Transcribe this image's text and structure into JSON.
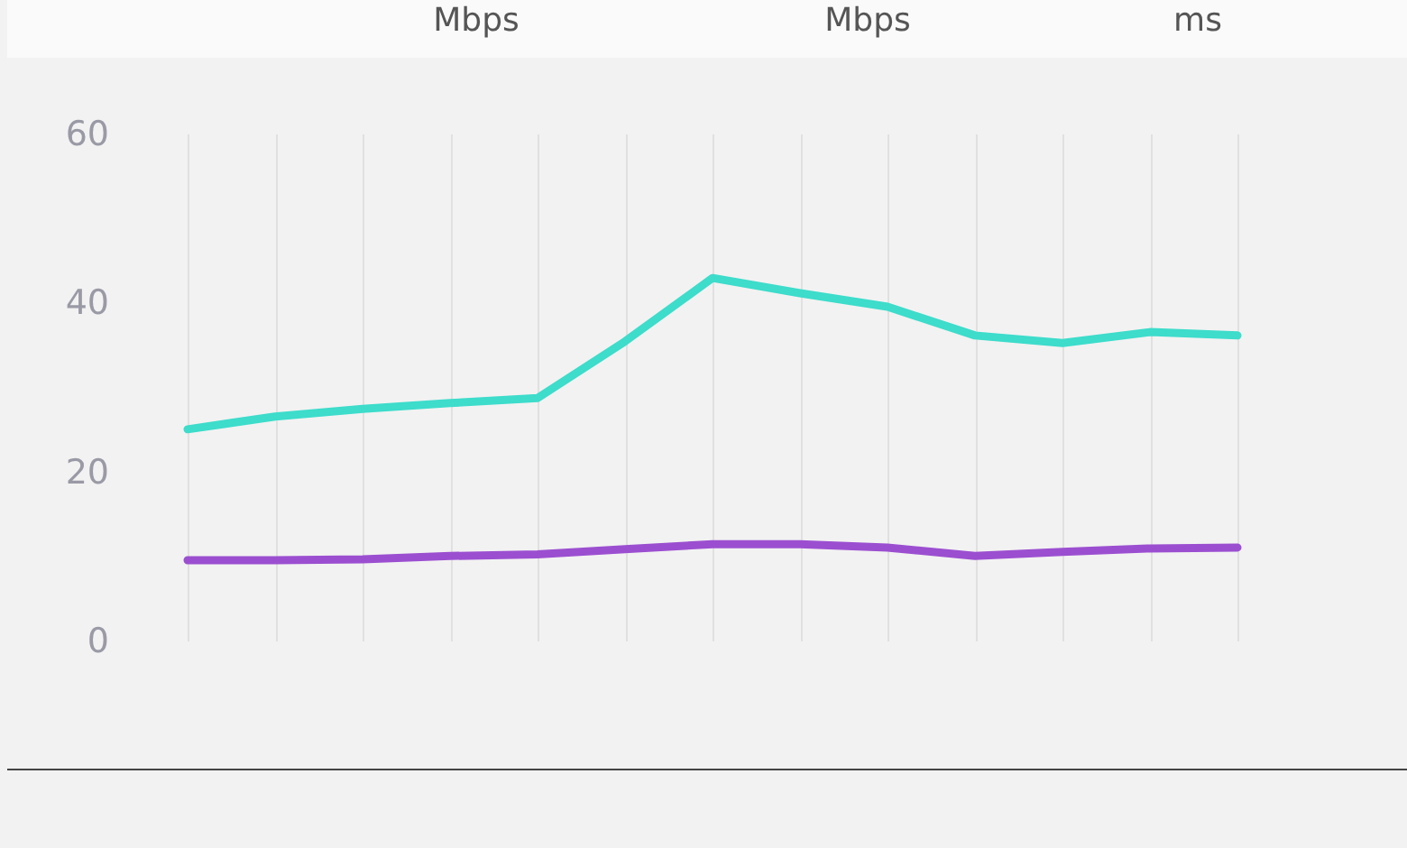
{
  "chart_data": {
    "type": "line",
    "annotations": [
      "Mbps",
      "Mbps",
      "ms"
    ],
    "categories": [
      null,
      null,
      null,
      null,
      null,
      null,
      null,
      null,
      null,
      null,
      null,
      null,
      null
    ],
    "series": [
      {
        "color": "#3ddccb",
        "values": [
          25.0,
          26.5,
          27.4,
          28.1,
          28.7,
          35.4,
          42.9,
          41.1,
          39.5,
          36.1,
          35.2,
          36.5,
          36.1
        ]
      },
      {
        "color": "#9b4fd0",
        "values": [
          9.5,
          9.5,
          9.6,
          10.0,
          10.2,
          10.8,
          11.4,
          11.4,
          11.0,
          10.0,
          10.5,
          10.9,
          11.0
        ]
      }
    ],
    "ylim": [
      0,
      60
    ],
    "yticks": [
      0,
      20,
      40,
      60
    ],
    "grid": "x",
    "tick_labels": "y",
    "legend": false,
    "marker": "none",
    "line_style": "solid"
  }
}
